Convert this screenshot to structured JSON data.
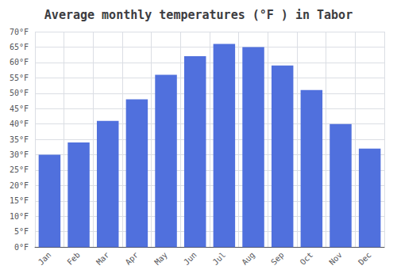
{
  "chart_data": {
    "type": "bar",
    "title": "Average monthly temperatures (°F ) in Tabor",
    "categories": [
      "Jan",
      "Feb",
      "Mar",
      "Apr",
      "May",
      "Jun",
      "Jul",
      "Aug",
      "Sep",
      "Oct",
      "Nov",
      "Dec"
    ],
    "values": [
      30,
      34,
      41,
      48,
      56,
      62,
      66,
      65,
      59,
      51,
      40,
      32
    ],
    "ylim": [
      0,
      70
    ],
    "yticks": [
      {
        "value": 0,
        "label": "0°F"
      },
      {
        "value": 5,
        "label": "5°F"
      },
      {
        "value": 10,
        "label": "10°F"
      },
      {
        "value": 15,
        "label": "15°F"
      },
      {
        "value": 20,
        "label": "20°F"
      },
      {
        "value": 25,
        "label": "25°F"
      },
      {
        "value": 30,
        "label": "30°F"
      },
      {
        "value": 35,
        "label": "35°F"
      },
      {
        "value": 40,
        "label": "40°F"
      },
      {
        "value": 45,
        "label": "45°F"
      },
      {
        "value": 50,
        "label": "50°F"
      },
      {
        "value": 55,
        "label": "55°F"
      },
      {
        "value": 60,
        "label": "60°F"
      },
      {
        "value": 65,
        "label": "65°F"
      },
      {
        "value": 70,
        "label": "70°F"
      }
    ],
    "grid": true
  }
}
